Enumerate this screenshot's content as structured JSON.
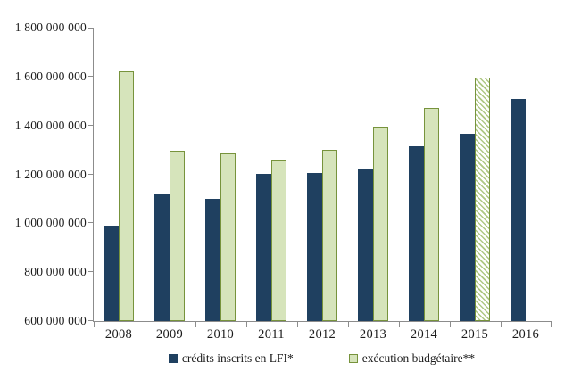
{
  "chart_data": {
    "type": "bar",
    "title": "",
    "xlabel": "",
    "ylabel": "",
    "categories": [
      "2008",
      "2009",
      "2010",
      "2011",
      "2012",
      "2013",
      "2014",
      "2015",
      "2016"
    ],
    "series": [
      {
        "name": "crédits inscrits en LFI*",
        "values": [
          990000000,
          1120000000,
          1100000000,
          1200000000,
          1205000000,
          1225000000,
          1315000000,
          1365000000,
          1510000000
        ]
      },
      {
        "name": "exécution budgétaire**",
        "values": [
          1620000000,
          1295000000,
          1285000000,
          1260000000,
          1300000000,
          1395000000,
          1470000000,
          1595000000,
          null
        ],
        "hatched_index": 7
      }
    ],
    "ylim": [
      600000000,
      1800000000
    ],
    "ytick_step": 200000000,
    "ytick_labels": [
      "1 800 000 000",
      "1 600 000 000",
      "1 400 000 000",
      "1 200 000 000",
      "1 000 000 000",
      "800 000 000",
      "600 000 000"
    ],
    "grid": false,
    "legend_position": "bottom"
  },
  "legend": {
    "lfi_label": "crédits inscrits en LFI*",
    "exec_label": "exécution budgétaire**"
  },
  "colors": {
    "lfi_bar": "#1F4060",
    "exec_fill": "#D6E4BB",
    "exec_border": "#77933C",
    "hatch_line": "#AFC884",
    "hatch_bg": "#FFFFFF",
    "axis": "#8C8C8C",
    "text": "#1A1A1A"
  }
}
